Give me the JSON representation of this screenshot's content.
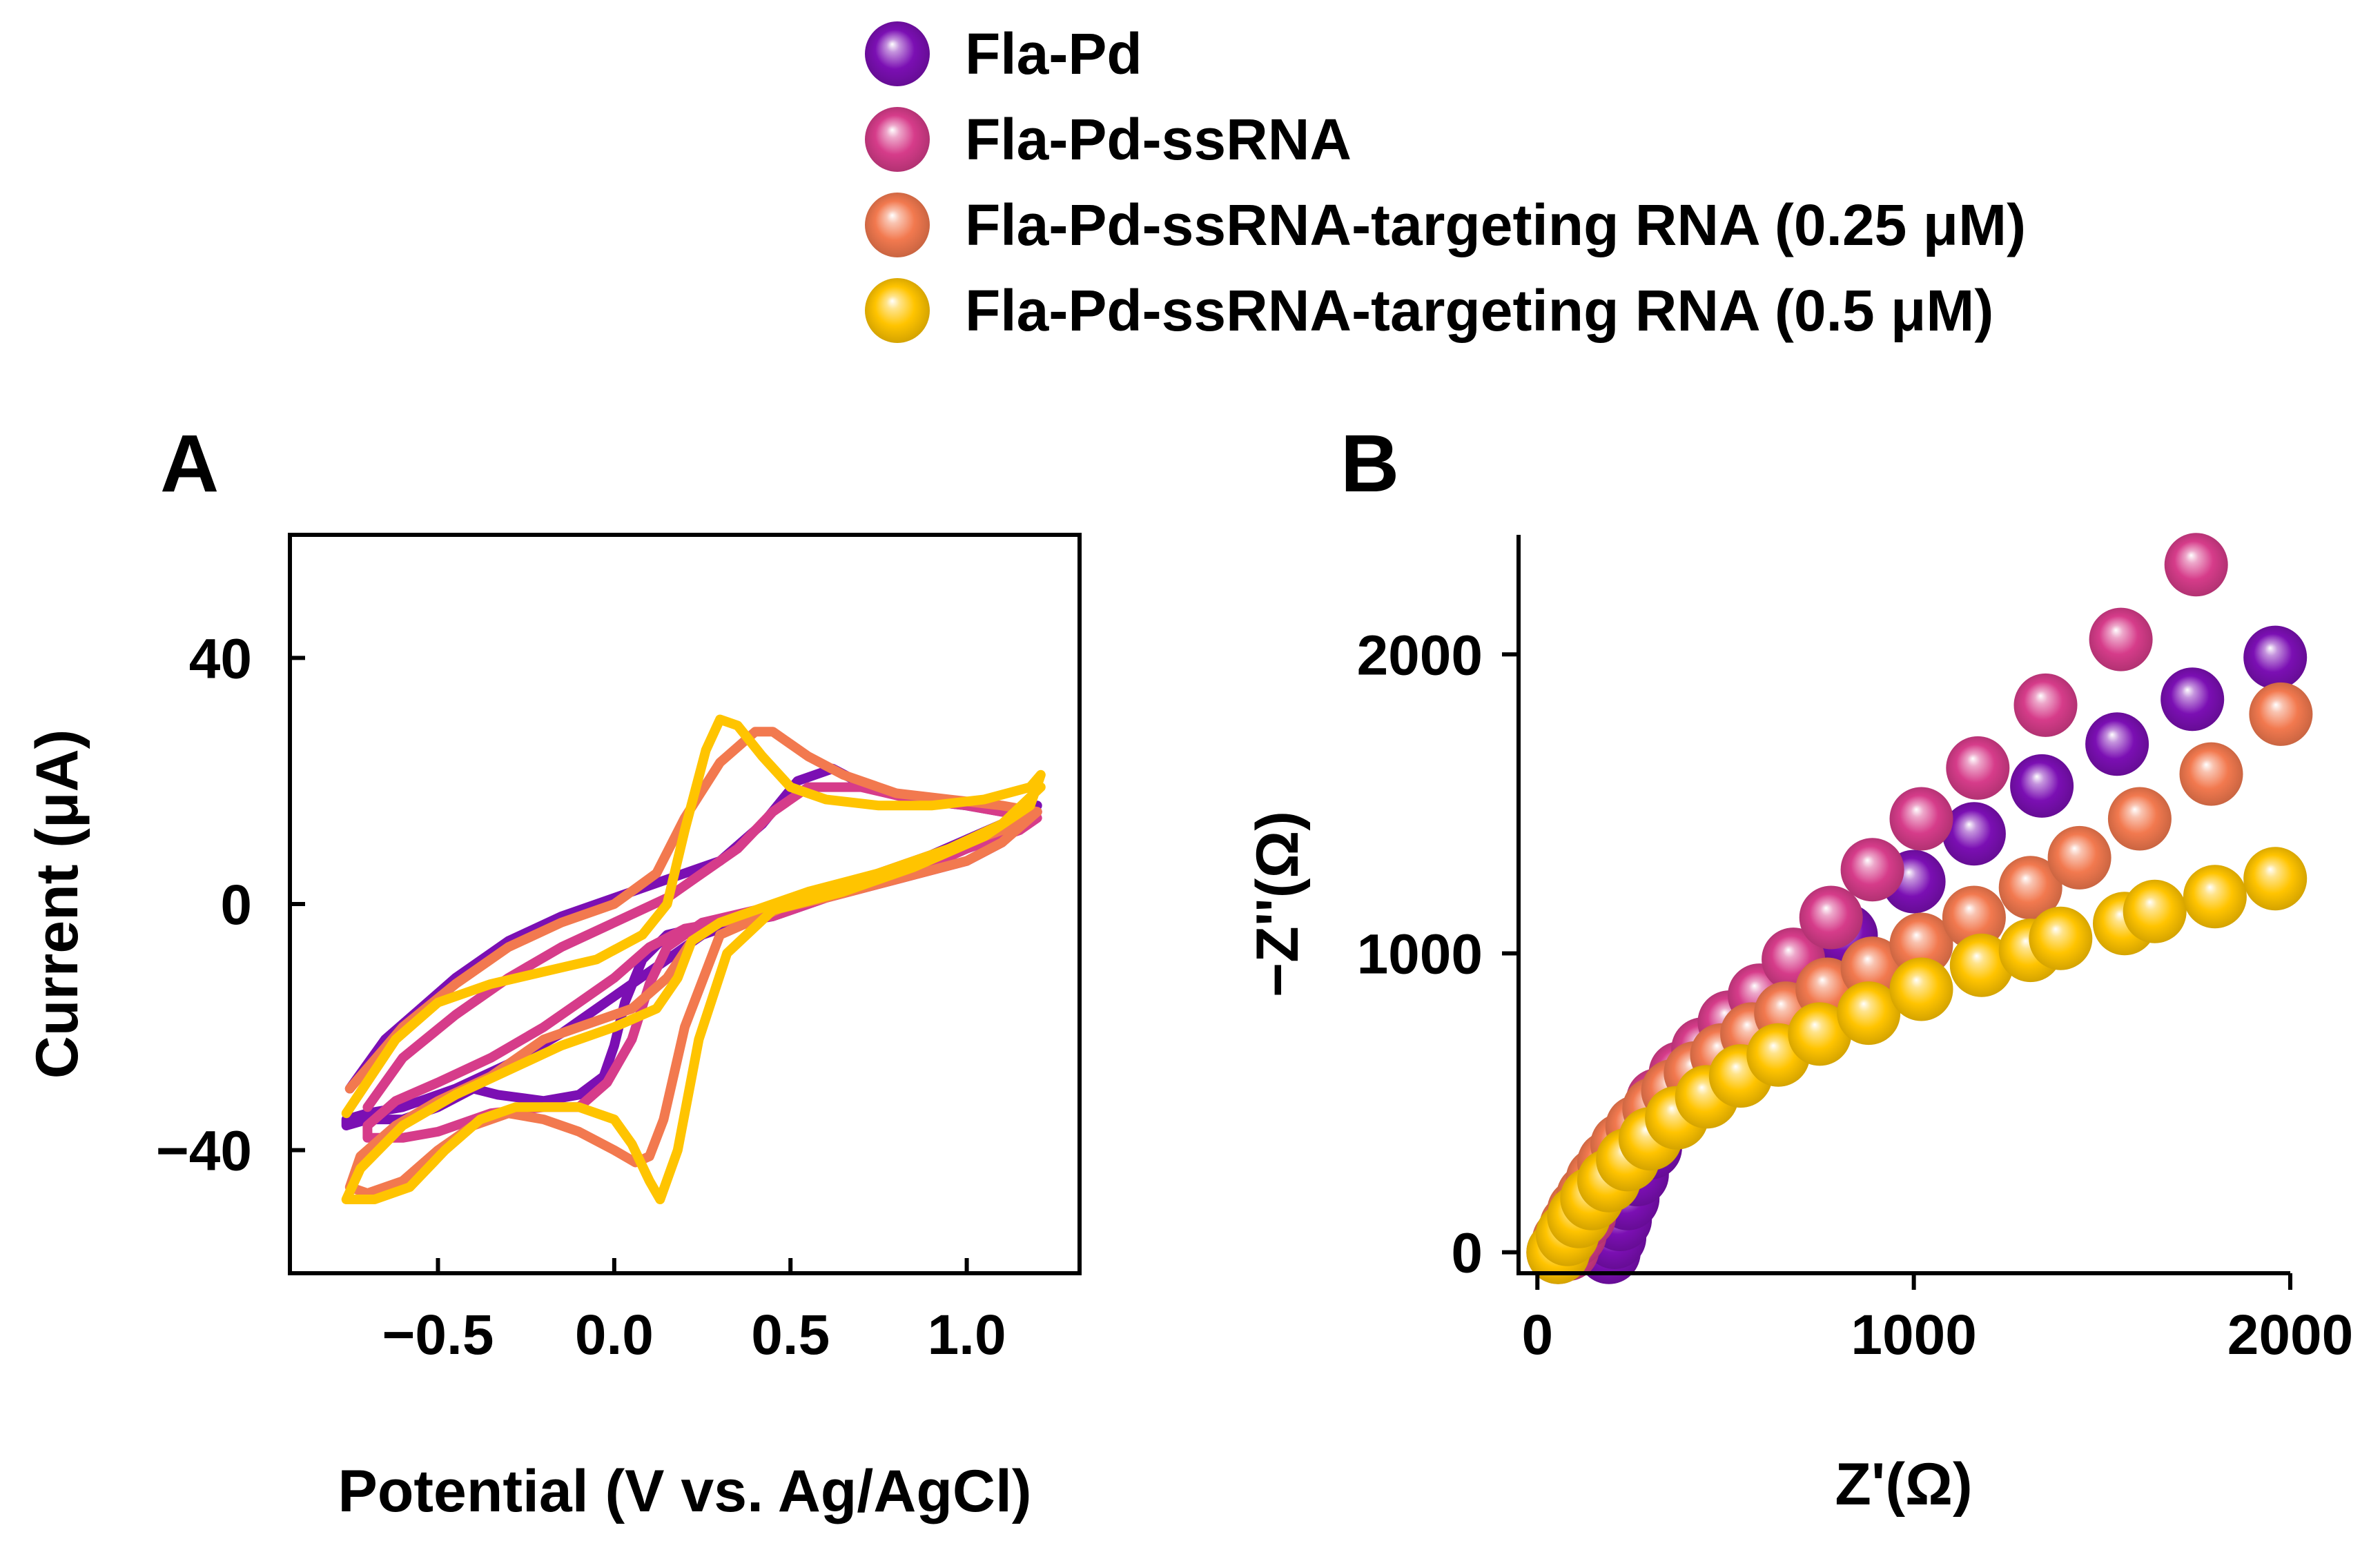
{
  "legend": [
    {
      "label": "Fla-Pd",
      "color": "#7B0FB3"
    },
    {
      "label": "Fla-Pd-ssRNA",
      "color": "#D63C8A"
    },
    {
      "label": "Fla-Pd-ssRNA-targeting RNA (0.25 μM)",
      "color": "#F2794F"
    },
    {
      "label": "Fla-Pd-ssRNA-targeting RNA (0.5 μM)",
      "color": "#FFC400"
    }
  ],
  "chart_data": [
    {
      "panel": "A",
      "type": "line",
      "title": "",
      "xlabel": "Potential (V vs. Ag/AgCl)",
      "ylabel": "Current (μA)",
      "xlim": [
        -0.92,
        1.32
      ],
      "ylim": [
        -60,
        60
      ],
      "xticks": [
        -0.5,
        0.0,
        0.5,
        1.0
      ],
      "xtick_labels": [
        "−0.5",
        "0.0",
        "0.5",
        "1.0"
      ],
      "yticks": [
        -40,
        0,
        40
      ],
      "ytick_labels": [
        "−40",
        "0",
        "40"
      ],
      "grid": false,
      "series": [
        {
          "name": "Fla-Pd",
          "color": "#7B0FB3",
          "x": [
            1.2,
            1.1,
            1.0,
            0.8,
            0.6,
            0.45,
            0.35,
            0.25,
            0.15,
            0.05,
            -0.05,
            -0.15,
            -0.3,
            -0.45,
            -0.6,
            -0.7,
            -0.76,
            -0.76,
            -0.7,
            -0.6,
            -0.5,
            -0.4,
            -0.33,
            -0.2,
            -0.1,
            -0.03,
            0.0,
            0.03,
            0.08,
            0.15,
            0.3,
            0.5,
            0.7,
            0.9,
            1.1,
            1.2,
            1.2,
            1.1,
            1.0,
            0.85,
            0.72,
            0.62,
            0.52,
            0.42,
            0.3,
            0.15,
            0.0,
            -0.15,
            -0.3,
            -0.45,
            -0.55,
            -0.65,
            -0.75
          ],
          "y": [
            16,
            10,
            7,
            4,
            1,
            -2,
            -3,
            -5,
            -9,
            -13,
            -17,
            -21,
            -26,
            -30,
            -33,
            -34,
            -35,
            -36,
            -35,
            -35,
            -33,
            -30,
            -31,
            -32,
            -31,
            -28,
            -23,
            -16,
            -9,
            -5,
            -3,
            0,
            4,
            8,
            13,
            15,
            15,
            15,
            16,
            17,
            19,
            22,
            20,
            13,
            7,
            4,
            1,
            -2,
            -6,
            -12,
            -17,
            -22,
            -30
          ]
        },
        {
          "name": "Fla-Pd-ssRNA",
          "color": "#D63C8A",
          "x": [
            1.2,
            1.1,
            1.0,
            0.8,
            0.6,
            0.45,
            0.3,
            0.2,
            0.1,
            0.0,
            -0.1,
            -0.2,
            -0.35,
            -0.5,
            -0.62,
            -0.7,
            -0.7,
            -0.6,
            -0.5,
            -0.35,
            -0.2,
            -0.1,
            -0.02,
            0.05,
            0.1,
            0.15,
            0.25,
            0.4,
            0.6,
            0.8,
            1.0,
            1.15,
            1.2,
            1.2,
            1.1,
            1.0,
            0.85,
            0.7,
            0.55,
            0.45,
            0.35,
            0.25,
            0.15,
            0.0,
            -0.15,
            -0.3,
            -0.45,
            -0.6,
            -0.7
          ],
          "y": [
            15,
            10,
            7,
            4,
            1,
            -2,
            -3,
            -4,
            -7,
            -12,
            -16,
            -20,
            -25,
            -29,
            -32,
            -36,
            -38,
            -38,
            -37,
            -34,
            -33,
            -33,
            -29,
            -22,
            -13,
            -7,
            -3,
            -1,
            1,
            4,
            9,
            12,
            14,
            14,
            15,
            16,
            17,
            19,
            19,
            15,
            9,
            5,
            1,
            -3,
            -7,
            -12,
            -18,
            -25,
            -33
          ]
        },
        {
          "name": "Fla-Pd-ssRNA-targeting RNA (0.25 μM)",
          "color": "#F2794F",
          "x": [
            1.2,
            1.1,
            1.0,
            0.8,
            0.6,
            0.45,
            0.3,
            0.22,
            0.15,
            0.05,
            -0.05,
            -0.2,
            -0.35,
            -0.5,
            -0.62,
            -0.72,
            -0.75,
            -0.7,
            -0.6,
            -0.5,
            -0.4,
            -0.3,
            -0.2,
            -0.1,
            0.0,
            0.06,
            0.1,
            0.14,
            0.2,
            0.3,
            0.5,
            0.7,
            0.9,
            1.1,
            1.2,
            1.2,
            1.1,
            0.95,
            0.8,
            0.65,
            0.55,
            0.45,
            0.4,
            0.3,
            0.2,
            0.12,
            0.0,
            -0.15,
            -0.3,
            -0.45,
            -0.6,
            -0.75
          ],
          "y": [
            15,
            10,
            7,
            4,
            1,
            -1,
            -3,
            -6,
            -12,
            -17,
            -19,
            -22,
            -28,
            -32,
            -36,
            -41,
            -46,
            -47,
            -45,
            -40,
            -36,
            -34,
            -35,
            -37,
            -40,
            -42,
            -41,
            -35,
            -20,
            -5,
            0,
            4,
            8,
            12,
            15,
            15,
            16,
            17,
            18,
            21,
            24,
            28,
            28,
            23,
            14,
            5,
            0,
            -3,
            -7,
            -13,
            -20,
            -30
          ]
        },
        {
          "name": "Fla-Pd-ssRNA-targeting RNA (0.5 μM)",
          "color": "#FFC400",
          "x": [
            1.21,
            1.1,
            0.95,
            0.75,
            0.55,
            0.4,
            0.3,
            0.22,
            0.18,
            0.12,
            0.0,
            -0.15,
            -0.3,
            -0.45,
            -0.6,
            -0.72,
            -0.76,
            -0.68,
            -0.58,
            -0.48,
            -0.38,
            -0.28,
            -0.2,
            -0.1,
            0.0,
            0.05,
            0.1,
            0.13,
            0.18,
            0.24,
            0.32,
            0.45,
            0.65,
            0.85,
            1.05,
            1.18,
            1.21,
            1.18,
            1.05,
            0.9,
            0.75,
            0.6,
            0.5,
            0.42,
            0.35,
            0.3,
            0.26,
            0.2,
            0.15,
            0.08,
            -0.05,
            -0.2,
            -0.35,
            -0.5,
            -0.62,
            -0.76
          ],
          "y": [
            19,
            13,
            9,
            5,
            2,
            -1,
            -3,
            -6,
            -12,
            -17,
            -20,
            -23,
            -27,
            -31,
            -36,
            -43,
            -48,
            -48,
            -46,
            -40,
            -35,
            -33,
            -33,
            -33,
            -35,
            -39,
            -45,
            -48,
            -40,
            -22,
            -8,
            -1,
            2,
            6,
            11,
            16,
            21,
            19,
            17,
            16,
            16,
            17,
            19,
            24,
            29,
            30,
            25,
            12,
            0,
            -5,
            -9,
            -11,
            -13,
            -16,
            -22,
            -34
          ]
        }
      ]
    },
    {
      "panel": "B",
      "type": "scatter",
      "title": "",
      "xlabel": "Z'(Ω)",
      "ylabel": "−Z''(Ω)",
      "xlim": [
        -50,
        2000
      ],
      "ylim": [
        -70,
        2400
      ],
      "xticks": [
        0,
        1000,
        2000
      ],
      "xtick_labels": [
        "0",
        "1000",
        "2000"
      ],
      "yticks": [
        0,
        1000,
        2000
      ],
      "ytick_labels": [
        "0",
        "1000",
        "2000"
      ],
      "grid": false,
      "series": [
        {
          "name": "Fla-Pd",
          "color": "#7B0FB3",
          "x": [
            190,
            205,
            220,
            240,
            265,
            300,
            340,
            395,
            450,
            520,
            600,
            700,
            820,
            1000,
            1160,
            1340,
            1540,
            1740,
            1960
          ],
          "y": [
            0,
            50,
            110,
            180,
            260,
            350,
            440,
            540,
            630,
            730,
            830,
            940,
            1060,
            1240,
            1400,
            1560,
            1700,
            1850,
            1990
          ]
        },
        {
          "name": "Fla-Pd-ssRNA",
          "color": "#D63C8A",
          "x": [
            80,
            100,
            125,
            150,
            185,
            225,
            270,
            320,
            380,
            440,
            510,
            590,
            680,
            780,
            890,
            1020,
            1170,
            1350,
            1550,
            1750
          ],
          "y": [
            10,
            60,
            120,
            190,
            260,
            340,
            420,
            510,
            600,
            680,
            770,
            860,
            980,
            1120,
            1280,
            1450,
            1620,
            1830,
            2050,
            2300
          ]
        },
        {
          "name": "Fla-Pd-ssRNA-targeting RNA (0.25 μM)",
          "color": "#F2794F",
          "x": [
            55,
            70,
            90,
            110,
            135,
            160,
            190,
            225,
            265,
            310,
            360,
            420,
            490,
            570,
            660,
            770,
            890,
            1020,
            1160,
            1310,
            1440,
            1600,
            1790,
            1975
          ],
          "y": [
            0,
            40,
            90,
            140,
            190,
            245,
            300,
            360,
            420,
            480,
            540,
            600,
            660,
            730,
            800,
            880,
            950,
            1030,
            1120,
            1220,
            1320,
            1450,
            1600,
            1800
          ]
        },
        {
          "name": "Fla-Pd-ssRNA-targeting RNA (0.5 μM)",
          "color": "#FFC400",
          "x": [
            55,
            80,
            110,
            145,
            190,
            240,
            300,
            370,
            450,
            540,
            640,
            750,
            880,
            1020,
            1180,
            1310,
            1390,
            1560,
            1640,
            1800,
            1960
          ],
          "y": [
            0,
            60,
            120,
            180,
            240,
            310,
            380,
            450,
            520,
            590,
            660,
            730,
            800,
            880,
            960,
            1010,
            1050,
            1100,
            1140,
            1190,
            1250
          ]
        }
      ]
    }
  ]
}
